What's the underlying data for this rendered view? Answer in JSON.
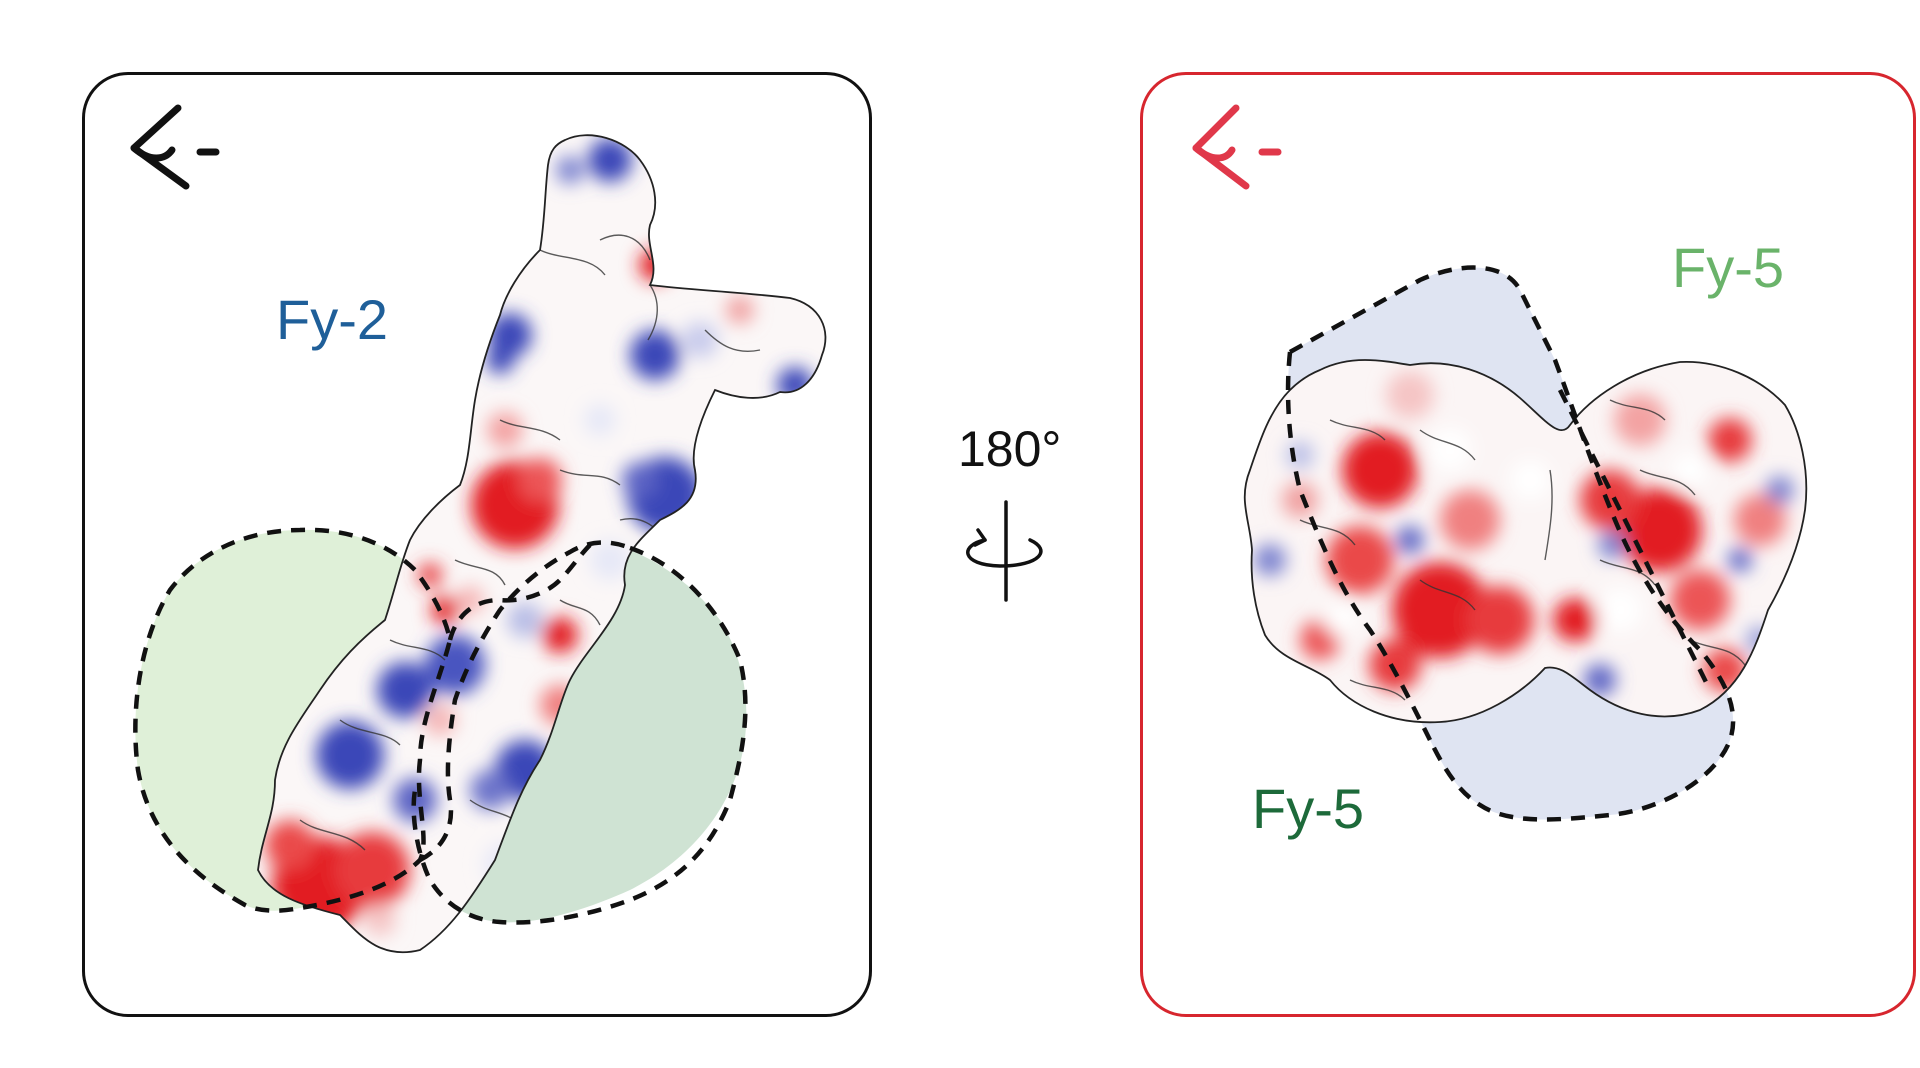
{
  "figure": {
    "left_panel": {
      "label": "Fy-2",
      "label_color": "#1f5f99",
      "border_color": "#111111",
      "shading_colors": [
        "#dff0d8",
        "#cfe3d3"
      ]
    },
    "rotation": {
      "angle_label": "180°",
      "icon": "rotate-axis-icon"
    },
    "right_panel": {
      "label_top": "Fy-5",
      "label_top_color": "#6ab36a",
      "label_bottom": "Fy-5",
      "label_bottom_color": "#1d6a3a",
      "border_color": "#d7262e",
      "shading_color": "#dfe4f2"
    },
    "icons": [
      "eye-view-icon",
      "eye-view-icon"
    ],
    "surface_colors": {
      "negative": "#e21d24",
      "positive": "#3a46b8",
      "neutral": "#ffffff"
    }
  }
}
